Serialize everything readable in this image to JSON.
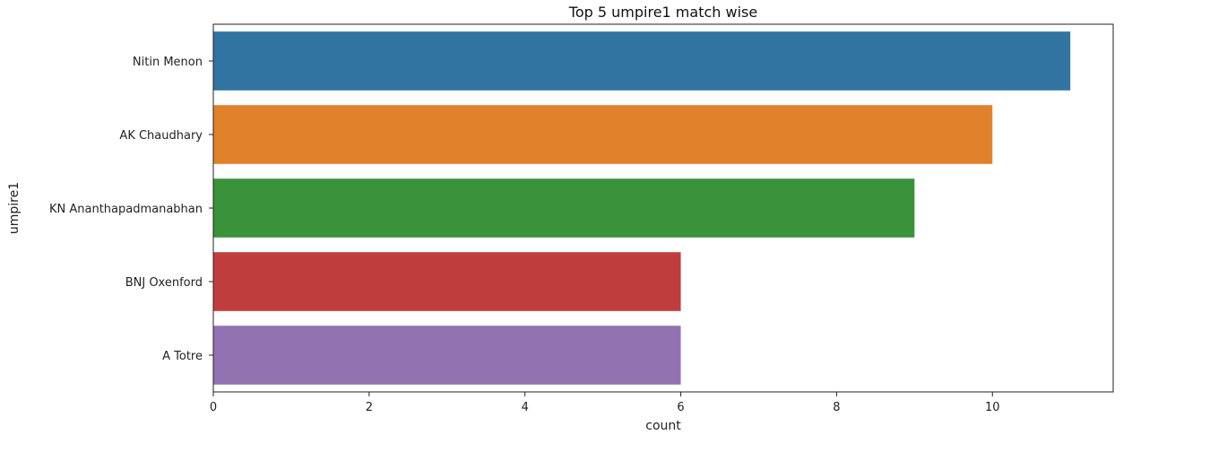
{
  "chart_data": {
    "type": "bar",
    "orientation": "horizontal",
    "title": "Top 5 umpire1 match wise",
    "xlabel": "count",
    "ylabel": "umpire1",
    "categories": [
      "Nitin Menon",
      "AK Chaudhary",
      "KN Ananthapadmanabhan",
      "BNJ Oxenford",
      "A Totre"
    ],
    "values": [
      11,
      10,
      9,
      6,
      6
    ],
    "colors": [
      "#3274a1",
      "#e1812c",
      "#3a923a",
      "#c03d3e",
      "#9372b2"
    ],
    "xlim": [
      0,
      11.55
    ],
    "xticks": [
      0,
      2,
      4,
      6,
      8,
      10
    ],
    "grid": false,
    "legend": "none"
  }
}
